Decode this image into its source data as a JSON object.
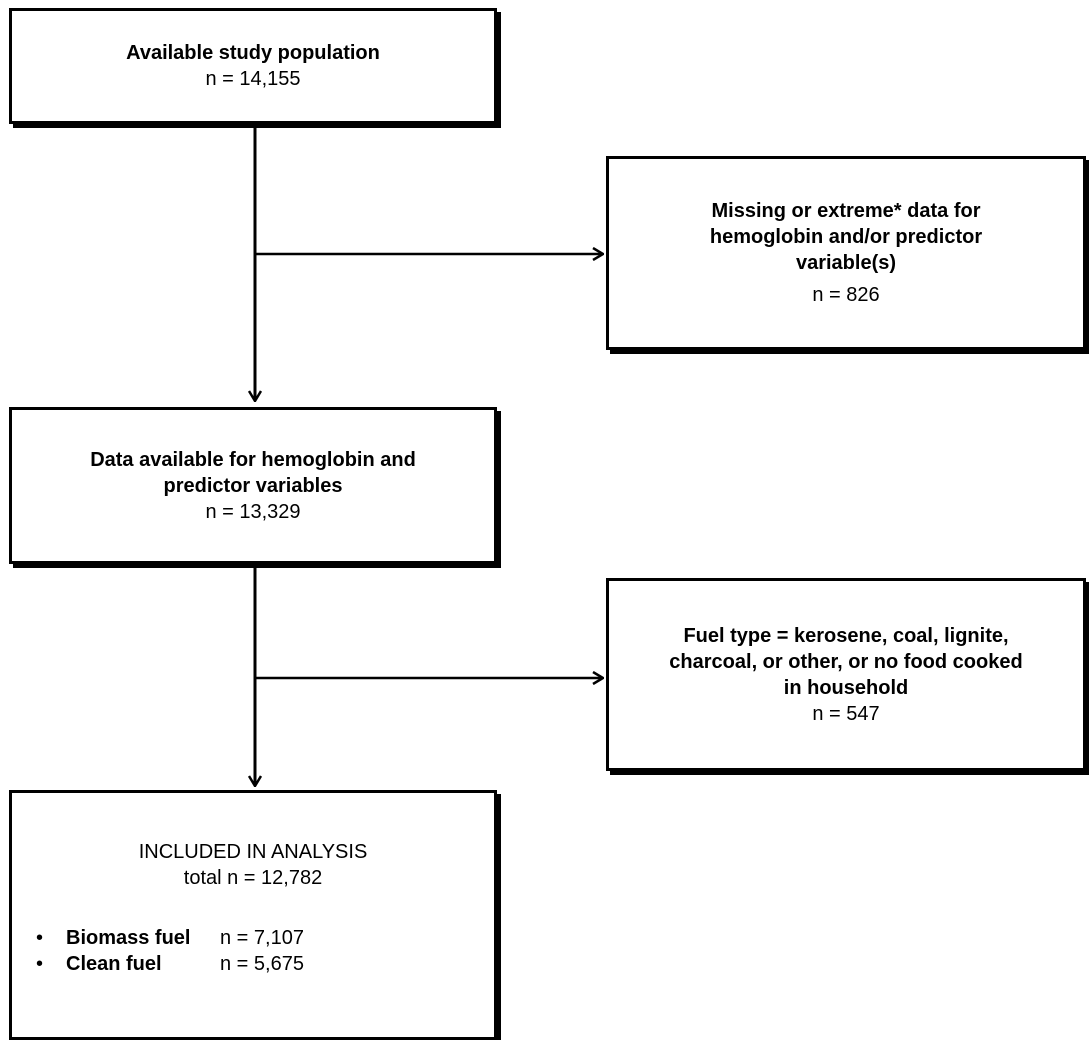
{
  "boxes": {
    "population": {
      "title": "Available study population",
      "count": "n = 14,155"
    },
    "excluded_missing": {
      "title_lines": [
        "Missing or extreme* data for",
        "hemoglobin and/or predictor",
        "variable(s)"
      ],
      "count": "n = 826"
    },
    "available": {
      "title_lines": [
        "Data available for hemoglobin and",
        "predictor variables"
      ],
      "count": "n = 13,329"
    },
    "excluded_fuel": {
      "title_lines": [
        "Fuel type = kerosene, coal, lignite,",
        "charcoal, or other, or no food cooked",
        "in household"
      ],
      "count": "n = 547"
    },
    "included": {
      "title": "INCLUDED IN ANALYSIS",
      "total": "total n = 12,782",
      "groups": [
        {
          "bullet": "•",
          "name": "Biomass fuel",
          "count": "n = 7,107"
        },
        {
          "bullet": "•",
          "name": "Clean fuel",
          "count": "n = 5,675"
        }
      ]
    }
  }
}
